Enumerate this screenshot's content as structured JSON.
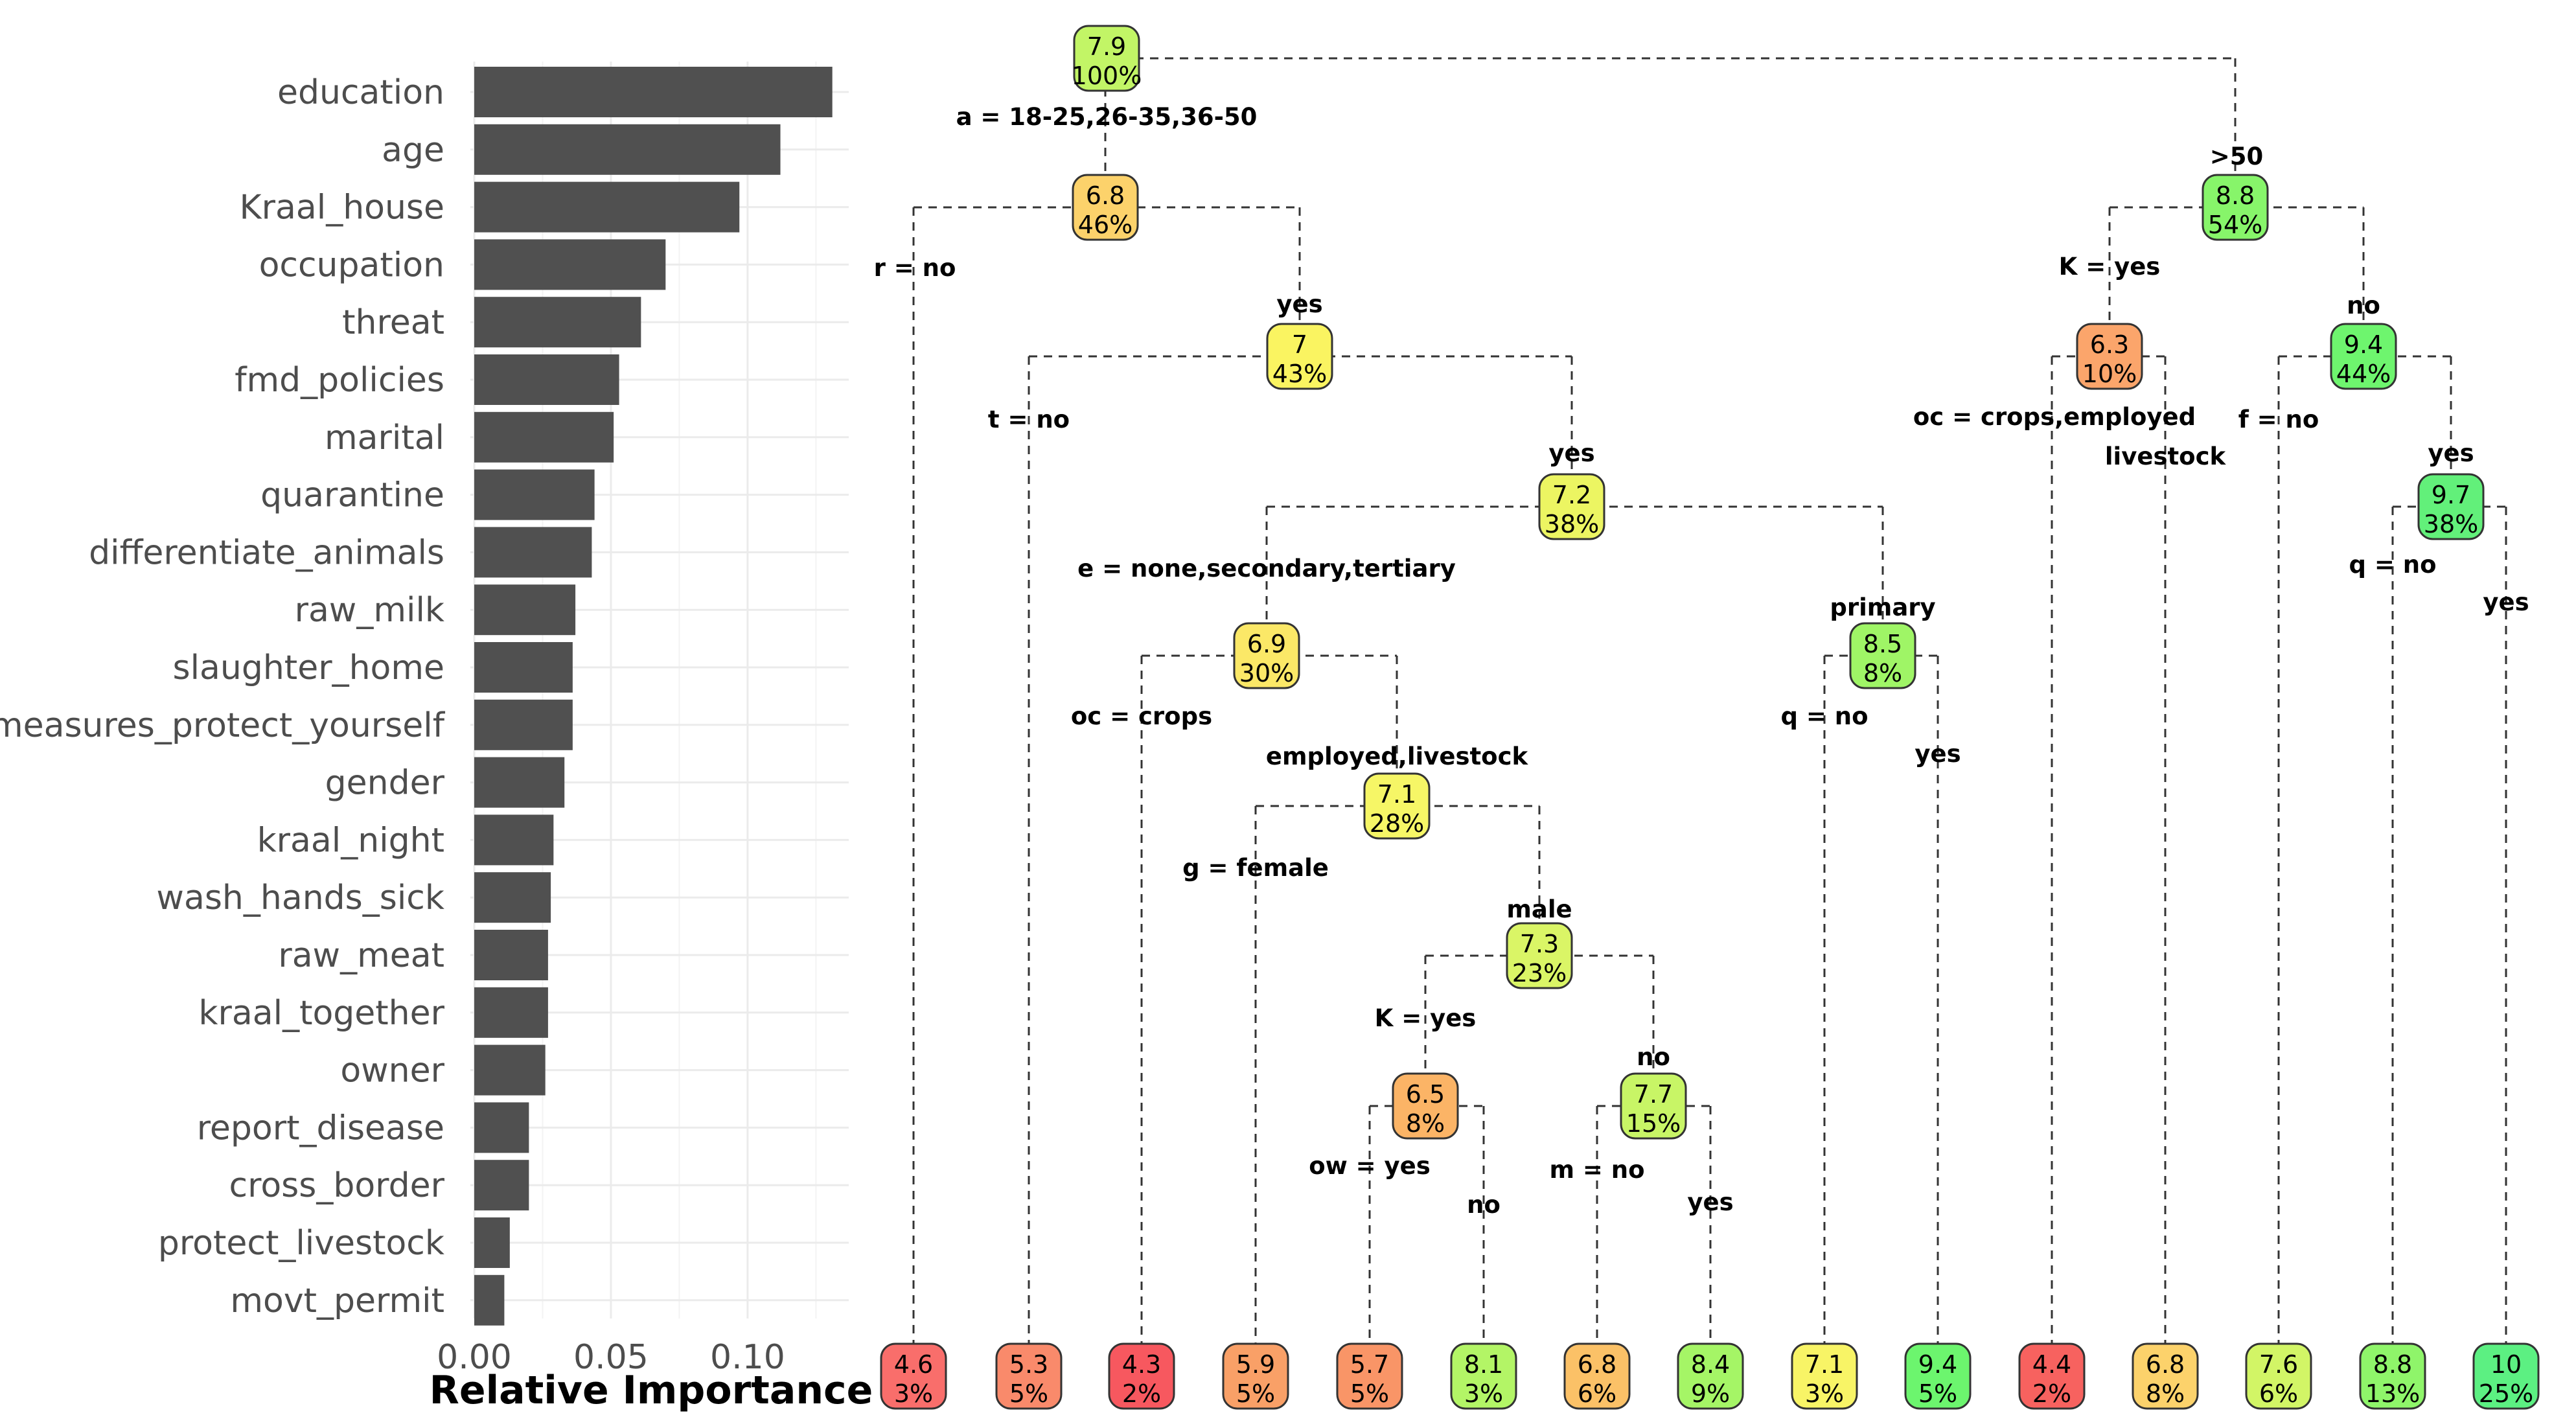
{
  "chart_data": [
    {
      "type": "bar",
      "orientation": "horizontal",
      "xlabel": "Relative Importance",
      "ylabel": "",
      "xlim": [
        0,
        0.137
      ],
      "xticks": [
        "0.00",
        "0.05",
        "0.10"
      ],
      "xtick_values": [
        0,
        0.05,
        0.1
      ],
      "categories": [
        "education",
        "age",
        "Kraal_house",
        "occupation",
        "threat",
        "fmd_policies",
        "marital",
        "quarantine",
        "differentiate_animals",
        "raw_milk",
        "slaughter_home",
        "measures_protect_yourself",
        "gender",
        "kraal_night",
        "wash_hands_sick",
        "raw_meat",
        "kraal_together",
        "owner",
        "report_disease",
        "cross_border",
        "protect_livestock",
        "movt_permit"
      ],
      "values": [
        0.131,
        0.112,
        0.097,
        0.07,
        0.061,
        0.053,
        0.051,
        0.044,
        0.043,
        0.037,
        0.036,
        0.036,
        0.033,
        0.029,
        0.028,
        0.027,
        0.027,
        0.026,
        0.02,
        0.02,
        0.013,
        0.011
      ],
      "bar_color": "#505050"
    },
    {
      "type": "tree",
      "description": "Regression tree, node = predicted value and percent of observations",
      "nodes": [
        {
          "id": "n1",
          "value": "7.9",
          "pct": "100%",
          "color": "#c2f566"
        },
        {
          "id": "n2",
          "value": "6.8",
          "pct": "46%",
          "color": "#fcd26b"
        },
        {
          "id": "n3",
          "value": "7",
          "pct": "43%",
          "color": "#faf461"
        },
        {
          "id": "n4",
          "value": "7.2",
          "pct": "38%",
          "color": "#ecf562"
        },
        {
          "id": "n5",
          "value": "6.9",
          "pct": "30%",
          "color": "#fbe867"
        },
        {
          "id": "n6",
          "value": "7.1",
          "pct": "28%",
          "color": "#f6f666"
        },
        {
          "id": "n7",
          "value": "7.3",
          "pct": "23%",
          "color": "#daf566"
        },
        {
          "id": "n8",
          "value": "6.5",
          "pct": "8%",
          "color": "#fbb466"
        },
        {
          "id": "n9",
          "value": "7.7",
          "pct": "15%",
          "color": "#c8f566"
        },
        {
          "id": "n10",
          "value": "8.5",
          "pct": "8%",
          "color": "#9ff566"
        },
        {
          "id": "n11",
          "value": "8.8",
          "pct": "54%",
          "color": "#87f56a"
        },
        {
          "id": "n12",
          "value": "6.3",
          "pct": "10%",
          "color": "#fba56b"
        },
        {
          "id": "n13",
          "value": "9.4",
          "pct": "44%",
          "color": "#6ef56e"
        },
        {
          "id": "n14",
          "value": "9.7",
          "pct": "38%",
          "color": "#62f07a"
        },
        {
          "id": "l1",
          "value": "4.6",
          "pct": "3%",
          "color": "#f96e6b"
        },
        {
          "id": "l2",
          "value": "5.3",
          "pct": "5%",
          "color": "#f98a6b"
        },
        {
          "id": "l3",
          "value": "4.3",
          "pct": "2%",
          "color": "#f7585f"
        },
        {
          "id": "l4",
          "value": "5.9",
          "pct": "5%",
          "color": "#f9a067"
        },
        {
          "id": "l5",
          "value": "5.7",
          "pct": "5%",
          "color": "#f99567"
        },
        {
          "id": "l6",
          "value": "8.1",
          "pct": "3%",
          "color": "#b3f566"
        },
        {
          "id": "l7",
          "value": "6.8",
          "pct": "6%",
          "color": "#fbc167"
        },
        {
          "id": "l8",
          "value": "8.4",
          "pct": "9%",
          "color": "#a5f566"
        },
        {
          "id": "l9",
          "value": "7.1",
          "pct": "3%",
          "color": "#f8f466"
        },
        {
          "id": "l10",
          "value": "9.4",
          "pct": "5%",
          "color": "#6cf56e"
        },
        {
          "id": "l11",
          "value": "4.4",
          "pct": "2%",
          "color": "#f7625f"
        },
        {
          "id": "l12",
          "value": "6.8",
          "pct": "8%",
          "color": "#fcd26b"
        },
        {
          "id": "l13",
          "value": "7.6",
          "pct": "6%",
          "color": "#d2f566"
        },
        {
          "id": "l14",
          "value": "8.8",
          "pct": "13%",
          "color": "#8ff56a"
        },
        {
          "id": "l15",
          "value": "10",
          "pct": "25%",
          "color": "#5cf082"
        }
      ],
      "split_labels": [
        {
          "id": "s1",
          "text": "a = 18-25,26-35,36-50"
        },
        {
          "id": "s2",
          "text": ">50"
        },
        {
          "id": "s3",
          "text": "r = no"
        },
        {
          "id": "s4",
          "text": "yes"
        },
        {
          "id": "s5",
          "text": "t = no"
        },
        {
          "id": "s6",
          "text": "yes"
        },
        {
          "id": "s7",
          "text": "e = none,secondary,tertiary"
        },
        {
          "id": "s8",
          "text": "primary"
        },
        {
          "id": "s9",
          "text": "oc = crops"
        },
        {
          "id": "s10",
          "text": "employed,livestock"
        },
        {
          "id": "s11",
          "text": "g = female"
        },
        {
          "id": "s12",
          "text": "male"
        },
        {
          "id": "s13",
          "text": "K = yes"
        },
        {
          "id": "s14",
          "text": "no"
        },
        {
          "id": "s15",
          "text": "ow = yes"
        },
        {
          "id": "s16",
          "text": "no"
        },
        {
          "id": "s17",
          "text": "m = no"
        },
        {
          "id": "s18",
          "text": "yes"
        },
        {
          "id": "s19",
          "text": "q = no"
        },
        {
          "id": "s20",
          "text": "yes"
        },
        {
          "id": "s21",
          "text": "K = yes"
        },
        {
          "id": "s22",
          "text": "no"
        },
        {
          "id": "s23",
          "text": "oc = crops,employed"
        },
        {
          "id": "s24",
          "text": "livestock"
        },
        {
          "id": "s25",
          "text": "f = no"
        },
        {
          "id": "s26",
          "text": "yes"
        },
        {
          "id": "s27",
          "text": "q = no"
        },
        {
          "id": "s28",
          "text": "yes"
        }
      ]
    }
  ]
}
